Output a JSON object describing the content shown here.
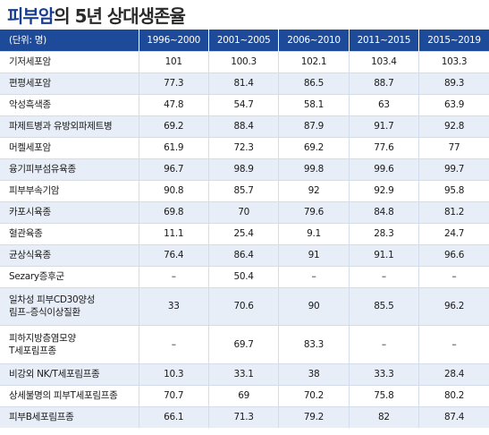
{
  "title": {
    "highlight": "피부암",
    "rest": "의 5년 상대생존율"
  },
  "columns": [
    "(단위: 명)",
    "1996~2000",
    "2001~2005",
    "2006~2010",
    "2011~2015",
    "2015~2019"
  ],
  "rows": [
    {
      "name": [
        "기저세포암"
      ],
      "values": [
        "101",
        "100.3",
        "102.1",
        "103.4",
        "103.3"
      ]
    },
    {
      "name": [
        "편평세포암"
      ],
      "values": [
        "77.3",
        "81.4",
        "86.5",
        "88.7",
        "89.3"
      ]
    },
    {
      "name": [
        "악성흑색종"
      ],
      "values": [
        "47.8",
        "54.7",
        "58.1",
        "63",
        "63.9"
      ]
    },
    {
      "name": [
        "파제트병과 유방외파제트병"
      ],
      "values": [
        "69.2",
        "88.4",
        "87.9",
        "91.7",
        "92.8"
      ]
    },
    {
      "name": [
        "머켈세포암"
      ],
      "values": [
        "61.9",
        "72.3",
        "69.2",
        "77.6",
        "77"
      ]
    },
    {
      "name": [
        "융기피부섬유육종"
      ],
      "values": [
        "96.7",
        "98.9",
        "99.8",
        "99.6",
        "99.7"
      ]
    },
    {
      "name": [
        "피부부속기암"
      ],
      "values": [
        "90.8",
        "85.7",
        "92",
        "92.9",
        "95.8"
      ]
    },
    {
      "name": [
        "카포시육종"
      ],
      "values": [
        "69.8",
        "70",
        "79.6",
        "84.8",
        "81.2"
      ]
    },
    {
      "name": [
        "혈관육종"
      ],
      "values": [
        "11.1",
        "25.4",
        "9.1",
        "28.3",
        "24.7"
      ]
    },
    {
      "name": [
        "균상식육종"
      ],
      "values": [
        "76.4",
        "86.4",
        "91",
        "91.1",
        "96.6"
      ]
    },
    {
      "name": [
        "Sezary증후군"
      ],
      "values": [
        "–",
        "50.4",
        "–",
        "–",
        "–"
      ]
    },
    {
      "name": [
        "일차성 피부CD30양성",
        "림프–증식이상질환"
      ],
      "values": [
        "33",
        "70.6",
        "90",
        "85.5",
        "96.2"
      ]
    },
    {
      "name": [
        "피하지방층염모양",
        "T세포림프종"
      ],
      "values": [
        "–",
        "69.7",
        "83.3",
        "–",
        "–"
      ]
    },
    {
      "name": [
        "비강외 NK/T세포림프종"
      ],
      "values": [
        "10.3",
        "33.1",
        "38",
        "33.3",
        "28.4"
      ]
    },
    {
      "name": [
        "상세불명의 피부T세포림프종"
      ],
      "values": [
        "70.7",
        "69",
        "70.2",
        "75.8",
        "80.2"
      ]
    },
    {
      "name": [
        "피부B세포림프종"
      ],
      "values": [
        "66.1",
        "71.3",
        "79.2",
        "82",
        "87.4"
      ]
    }
  ]
}
